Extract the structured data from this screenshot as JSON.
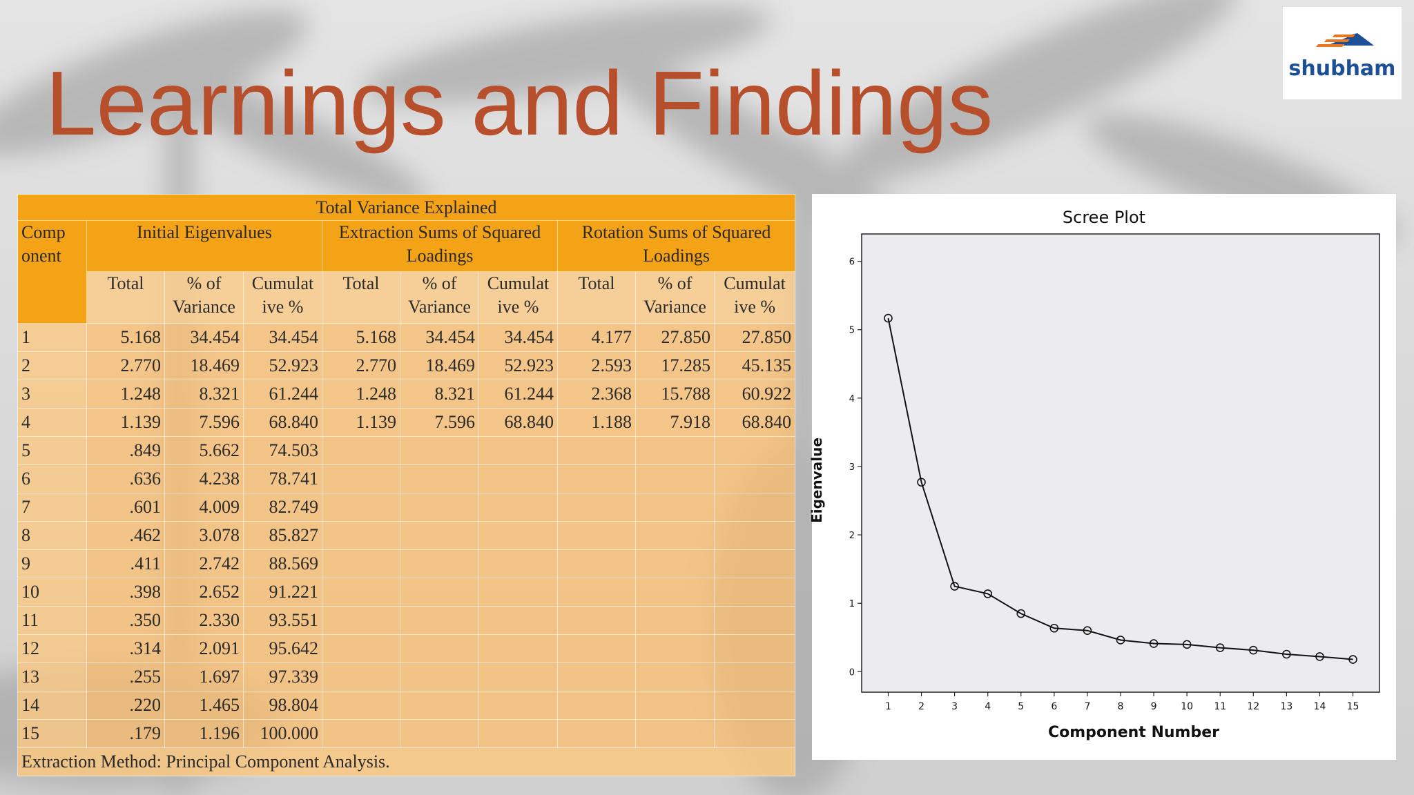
{
  "slide": {
    "title": "Learnings and Findings",
    "logo_text": "shubham",
    "accent_color": "#b84f2c",
    "table_color": "#f5a316"
  },
  "table": {
    "caption": "Total Variance Explained",
    "component_header": "Comp onent",
    "group_headers": [
      "Initial Eigenvalues",
      "Extraction Sums of Squared Loadings",
      "Rotation Sums of Squared Loadings"
    ],
    "sub_headers": [
      "Total",
      "% of Variance",
      "Cumulat ive %"
    ],
    "rows": [
      {
        "c": "1",
        "init": [
          "5.168",
          "34.454",
          "34.454"
        ],
        "ext": [
          "5.168",
          "34.454",
          "34.454"
        ],
        "rot": [
          "4.177",
          "27.850",
          "27.850"
        ]
      },
      {
        "c": "2",
        "init": [
          "2.770",
          "18.469",
          "52.923"
        ],
        "ext": [
          "2.770",
          "18.469",
          "52.923"
        ],
        "rot": [
          "2.593",
          "17.285",
          "45.135"
        ]
      },
      {
        "c": "3",
        "init": [
          "1.248",
          "8.321",
          "61.244"
        ],
        "ext": [
          "1.248",
          "8.321",
          "61.244"
        ],
        "rot": [
          "2.368",
          "15.788",
          "60.922"
        ]
      },
      {
        "c": "4",
        "init": [
          "1.139",
          "7.596",
          "68.840"
        ],
        "ext": [
          "1.139",
          "7.596",
          "68.840"
        ],
        "rot": [
          "1.188",
          "7.918",
          "68.840"
        ]
      },
      {
        "c": "5",
        "init": [
          ".849",
          "5.662",
          "74.503"
        ],
        "ext": [
          "",
          "",
          ""
        ],
        "rot": [
          "",
          "",
          ""
        ]
      },
      {
        "c": "6",
        "init": [
          ".636",
          "4.238",
          "78.741"
        ],
        "ext": [
          "",
          "",
          ""
        ],
        "rot": [
          "",
          "",
          ""
        ]
      },
      {
        "c": "7",
        "init": [
          ".601",
          "4.009",
          "82.749"
        ],
        "ext": [
          "",
          "",
          ""
        ],
        "rot": [
          "",
          "",
          ""
        ]
      },
      {
        "c": "8",
        "init": [
          ".462",
          "3.078",
          "85.827"
        ],
        "ext": [
          "",
          "",
          ""
        ],
        "rot": [
          "",
          "",
          ""
        ]
      },
      {
        "c": "9",
        "init": [
          ".411",
          "2.742",
          "88.569"
        ],
        "ext": [
          "",
          "",
          ""
        ],
        "rot": [
          "",
          "",
          ""
        ]
      },
      {
        "c": "10",
        "init": [
          ".398",
          "2.652",
          "91.221"
        ],
        "ext": [
          "",
          "",
          ""
        ],
        "rot": [
          "",
          "",
          ""
        ]
      },
      {
        "c": "11",
        "init": [
          ".350",
          "2.330",
          "93.551"
        ],
        "ext": [
          "",
          "",
          ""
        ],
        "rot": [
          "",
          "",
          ""
        ]
      },
      {
        "c": "12",
        "init": [
          ".314",
          "2.091",
          "95.642"
        ],
        "ext": [
          "",
          "",
          ""
        ],
        "rot": [
          "",
          "",
          ""
        ]
      },
      {
        "c": "13",
        "init": [
          ".255",
          "1.697",
          "97.339"
        ],
        "ext": [
          "",
          "",
          ""
        ],
        "rot": [
          "",
          "",
          ""
        ]
      },
      {
        "c": "14",
        "init": [
          ".220",
          "1.465",
          "98.804"
        ],
        "ext": [
          "",
          "",
          ""
        ],
        "rot": [
          "",
          "",
          ""
        ]
      },
      {
        "c": "15",
        "init": [
          ".179",
          "1.196",
          "100.000"
        ],
        "ext": [
          "",
          "",
          ""
        ],
        "rot": [
          "",
          "",
          ""
        ]
      }
    ],
    "footer": "Extraction Method: Principal Component Analysis."
  },
  "chart_data": {
    "type": "line",
    "title": "Scree Plot",
    "xlabel": "Component Number",
    "ylabel": "Eigenvalue",
    "x": [
      1,
      2,
      3,
      4,
      5,
      6,
      7,
      8,
      9,
      10,
      11,
      12,
      13,
      14,
      15
    ],
    "values": [
      5.168,
      2.77,
      1.248,
      1.139,
      0.849,
      0.636,
      0.601,
      0.462,
      0.411,
      0.398,
      0.35,
      0.314,
      0.255,
      0.22,
      0.179
    ],
    "ylim": [
      -0.3,
      6.4
    ],
    "xlim": [
      0.2,
      15.8
    ],
    "yticks": [
      0,
      1,
      2,
      3,
      4,
      5,
      6
    ],
    "xticks": [
      1,
      2,
      3,
      4,
      5,
      6,
      7,
      8,
      9,
      10,
      11,
      12,
      13,
      14,
      15
    ],
    "markers": "open-circle",
    "grid": false,
    "plot_background": "#ececf0"
  }
}
